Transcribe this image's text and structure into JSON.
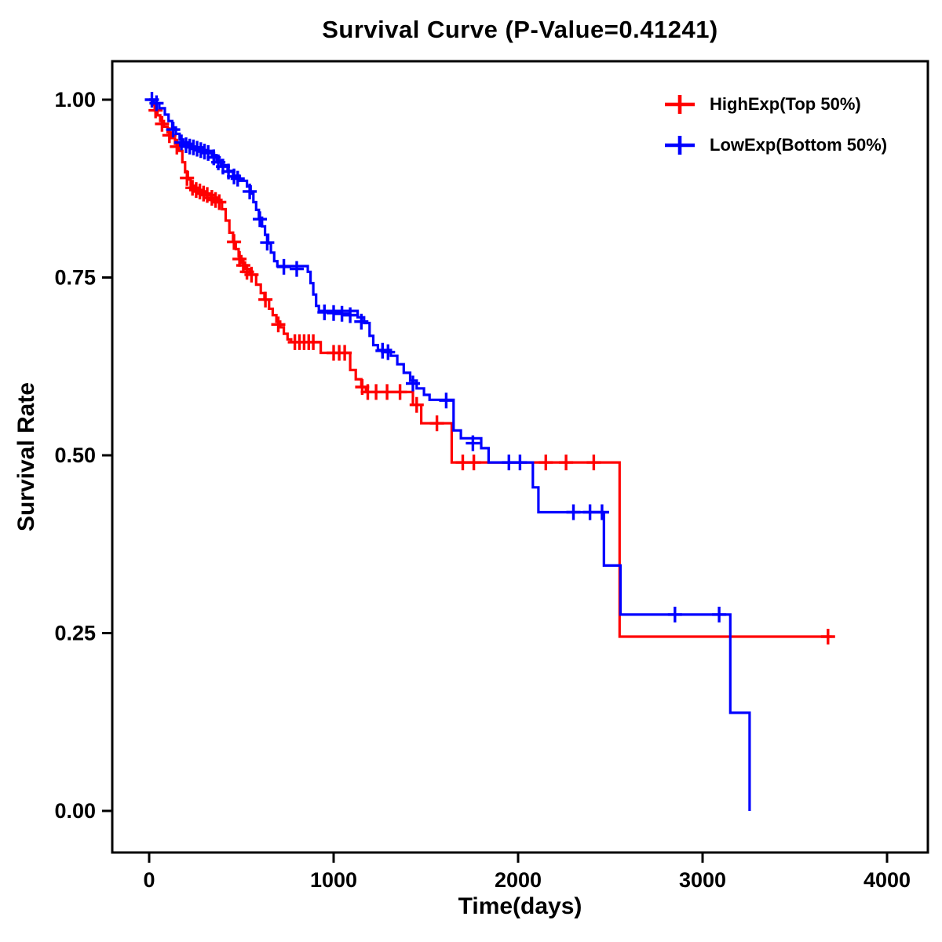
{
  "page": {
    "title": "Survival Curve (P-Value=0.41241)"
  },
  "chart_data": {
    "type": "line",
    "subtype": "kaplan-meier-step-survival",
    "title": "Survival Curve (P-Value=0.41241)",
    "xlabel": "Time(days)",
    "ylabel": "Survival Rate",
    "p_value": "0.41241",
    "grid": false,
    "legend_position": "top-right",
    "xlim": [
      -200,
      4200
    ],
    "ylim": [
      -0.05,
      1.06
    ],
    "x_ticks": [
      0,
      1000,
      2000,
      3000,
      4000
    ],
    "x_tick_labels": [
      "0",
      "1000",
      "2000",
      "3000",
      "4000"
    ],
    "y_ticks": [
      0,
      0.25,
      0.5,
      0.75,
      1
    ],
    "y_tick_labels": [
      "0.00",
      "0.25",
      "0.50",
      "0.75",
      "1.00"
    ],
    "series": [
      {
        "id": "highexp",
        "name": "HighExp(Top 50%)",
        "color": "#FF0000",
        "end_day": 3700,
        "steps": [
          [
            0,
            1.0
          ],
          [
            15,
            0.993
          ],
          [
            30,
            0.985
          ],
          [
            45,
            0.978
          ],
          [
            60,
            0.97
          ],
          [
            80,
            0.962
          ],
          [
            100,
            0.954
          ],
          [
            120,
            0.946
          ],
          [
            140,
            0.938
          ],
          [
            160,
            0.928
          ],
          [
            180,
            0.912
          ],
          [
            195,
            0.898
          ],
          [
            210,
            0.888
          ],
          [
            225,
            0.879
          ],
          [
            245,
            0.873
          ],
          [
            290,
            0.868
          ],
          [
            335,
            0.862
          ],
          [
            375,
            0.856
          ],
          [
            395,
            0.846
          ],
          [
            415,
            0.83
          ],
          [
            435,
            0.813
          ],
          [
            455,
            0.8
          ],
          [
            470,
            0.79
          ],
          [
            485,
            0.78
          ],
          [
            500,
            0.771
          ],
          [
            520,
            0.762
          ],
          [
            545,
            0.754
          ],
          [
            580,
            0.74
          ],
          [
            605,
            0.728
          ],
          [
            625,
            0.719
          ],
          [
            650,
            0.706
          ],
          [
            670,
            0.697
          ],
          [
            690,
            0.688
          ],
          [
            710,
            0.68
          ],
          [
            730,
            0.671
          ],
          [
            750,
            0.663
          ],
          [
            770,
            0.659
          ],
          [
            930,
            0.644
          ],
          [
            1090,
            0.62
          ],
          [
            1120,
            0.607
          ],
          [
            1150,
            0.596
          ],
          [
            1175,
            0.589
          ],
          [
            1430,
            0.571
          ],
          [
            1475,
            0.545
          ],
          [
            1640,
            0.49
          ],
          [
            2550,
            0.245
          ]
        ],
        "censors": [
          [
            35,
            0.985
          ],
          [
            70,
            0.966
          ],
          [
            110,
            0.95
          ],
          [
            150,
            0.934
          ],
          [
            205,
            0.89
          ],
          [
            235,
            0.876
          ],
          [
            255,
            0.873
          ],
          [
            275,
            0.871
          ],
          [
            295,
            0.868
          ],
          [
            315,
            0.866
          ],
          [
            340,
            0.862
          ],
          [
            360,
            0.859
          ],
          [
            380,
            0.856
          ],
          [
            460,
            0.8
          ],
          [
            490,
            0.776
          ],
          [
            510,
            0.767
          ],
          [
            530,
            0.758
          ],
          [
            555,
            0.754
          ],
          [
            630,
            0.719
          ],
          [
            700,
            0.684
          ],
          [
            790,
            0.659
          ],
          [
            815,
            0.659
          ],
          [
            840,
            0.659
          ],
          [
            865,
            0.659
          ],
          [
            890,
            0.659
          ],
          [
            1000,
            0.644
          ],
          [
            1030,
            0.644
          ],
          [
            1060,
            0.644
          ],
          [
            1155,
            0.596
          ],
          [
            1185,
            0.589
          ],
          [
            1230,
            0.589
          ],
          [
            1290,
            0.589
          ],
          [
            1360,
            0.589
          ],
          [
            1450,
            0.571
          ],
          [
            1560,
            0.545
          ],
          [
            1700,
            0.49
          ],
          [
            1760,
            0.49
          ],
          [
            2150,
            0.49
          ],
          [
            2260,
            0.49
          ],
          [
            2410,
            0.49
          ],
          [
            3680,
            0.245
          ]
        ]
      },
      {
        "id": "lowexp",
        "name": "LowExp(Bottom 50%)",
        "color": "#0000FF",
        "end_day": 3255,
        "steps": [
          [
            0,
            1.0
          ],
          [
            25,
            0.995
          ],
          [
            55,
            0.988
          ],
          [
            85,
            0.979
          ],
          [
            105,
            0.97
          ],
          [
            125,
            0.961
          ],
          [
            145,
            0.952
          ],
          [
            165,
            0.944
          ],
          [
            185,
            0.938
          ],
          [
            230,
            0.933
          ],
          [
            290,
            0.928
          ],
          [
            340,
            0.922
          ],
          [
            365,
            0.915
          ],
          [
            390,
            0.908
          ],
          [
            425,
            0.9
          ],
          [
            455,
            0.893
          ],
          [
            490,
            0.886
          ],
          [
            530,
            0.878
          ],
          [
            550,
            0.868
          ],
          [
            565,
            0.856
          ],
          [
            580,
            0.845
          ],
          [
            595,
            0.834
          ],
          [
            612,
            0.822
          ],
          [
            628,
            0.81
          ],
          [
            645,
            0.798
          ],
          [
            660,
            0.785
          ],
          [
            678,
            0.773
          ],
          [
            695,
            0.766
          ],
          [
            860,
            0.758
          ],
          [
            875,
            0.742
          ],
          [
            890,
            0.726
          ],
          [
            905,
            0.71
          ],
          [
            920,
            0.703
          ],
          [
            1130,
            0.694
          ],
          [
            1165,
            0.686
          ],
          [
            1195,
            0.668
          ],
          [
            1215,
            0.655
          ],
          [
            1240,
            0.648
          ],
          [
            1310,
            0.64
          ],
          [
            1345,
            0.628
          ],
          [
            1380,
            0.616
          ],
          [
            1415,
            0.605
          ],
          [
            1450,
            0.594
          ],
          [
            1490,
            0.585
          ],
          [
            1520,
            0.578
          ],
          [
            1650,
            0.535
          ],
          [
            1690,
            0.524
          ],
          [
            1800,
            0.51
          ],
          [
            1840,
            0.49
          ],
          [
            2080,
            0.455
          ],
          [
            2110,
            0.42
          ],
          [
            2465,
            0.345
          ],
          [
            2555,
            0.276
          ],
          [
            3150,
            0.138
          ],
          [
            3255,
            0.0
          ]
        ],
        "censors": [
          [
            15,
            1.0
          ],
          [
            40,
            0.995
          ],
          [
            130,
            0.958
          ],
          [
            175,
            0.94
          ],
          [
            200,
            0.936
          ],
          [
            220,
            0.934
          ],
          [
            240,
            0.933
          ],
          [
            260,
            0.931
          ],
          [
            280,
            0.929
          ],
          [
            300,
            0.927
          ],
          [
            320,
            0.925
          ],
          [
            350,
            0.919
          ],
          [
            375,
            0.912
          ],
          [
            400,
            0.906
          ],
          [
            430,
            0.899
          ],
          [
            460,
            0.892
          ],
          [
            480,
            0.889
          ],
          [
            545,
            0.871
          ],
          [
            600,
            0.832
          ],
          [
            640,
            0.799
          ],
          [
            730,
            0.765
          ],
          [
            800,
            0.762
          ],
          [
            950,
            0.701
          ],
          [
            1000,
            0.7
          ],
          [
            1045,
            0.699
          ],
          [
            1090,
            0.697
          ],
          [
            1150,
            0.688
          ],
          [
            1265,
            0.647
          ],
          [
            1295,
            0.645
          ],
          [
            1430,
            0.601
          ],
          [
            1610,
            0.577
          ],
          [
            1755,
            0.517
          ],
          [
            1950,
            0.49
          ],
          [
            2010,
            0.49
          ],
          [
            2300,
            0.42
          ],
          [
            2390,
            0.42
          ],
          [
            2455,
            0.42
          ],
          [
            2850,
            0.276
          ],
          [
            3090,
            0.276
          ]
        ]
      }
    ]
  }
}
